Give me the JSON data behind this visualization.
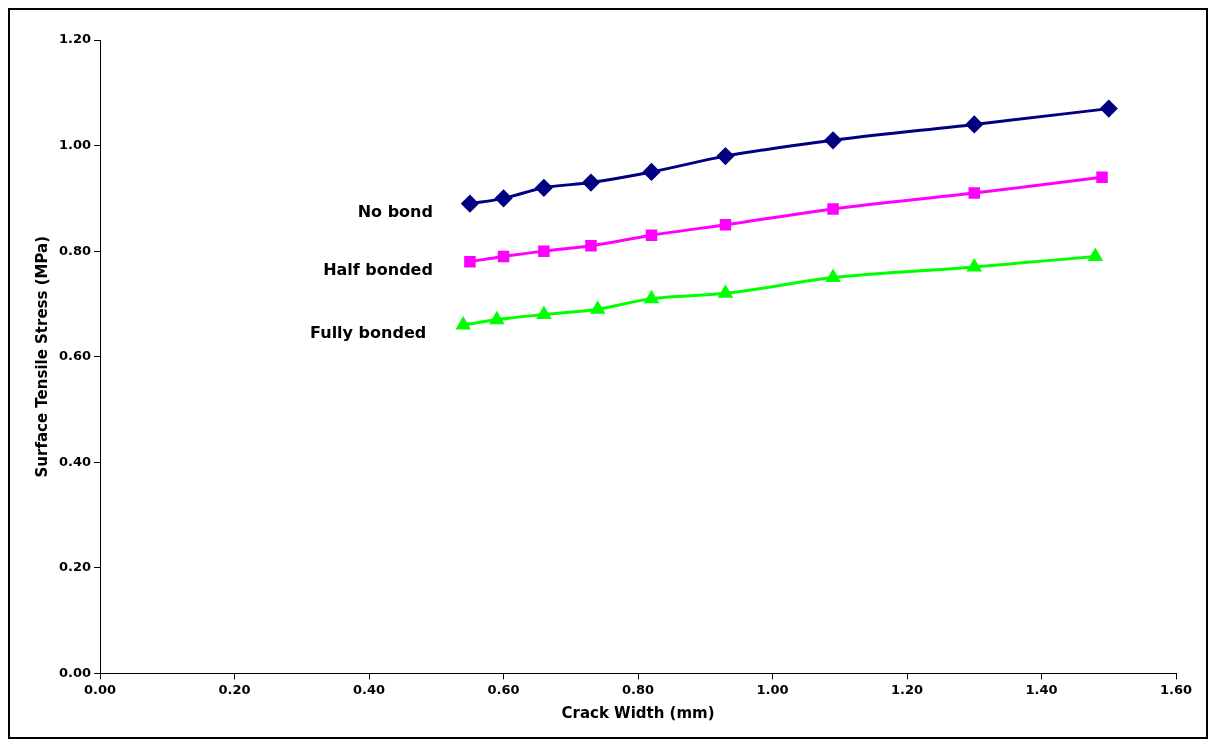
{
  "chart_data": {
    "type": "line",
    "xlabel": "Crack Width (mm)",
    "ylabel": "Surface Tensile Stress (MPa)",
    "xlim": [
      0,
      1.6
    ],
    "xticks": [
      {
        "value": 0,
        "label": "0.00"
      },
      {
        "value": 0.2,
        "label": "0.20"
      },
      {
        "value": 0.4,
        "label": "0.40"
      },
      {
        "value": 0.6,
        "label": "0.60"
      },
      {
        "value": 0.8,
        "label": "0.80"
      },
      {
        "value": 1,
        "label": "1.00"
      },
      {
        "value": 1.2,
        "label": "1.20"
      },
      {
        "value": 1.4,
        "label": "1.40"
      },
      {
        "value": 1.6,
        "label": "1.60"
      }
    ],
    "ylim": [
      0,
      1.2
    ],
    "yticks": [
      {
        "value": 0,
        "label": "0.00"
      },
      {
        "value": 0.2,
        "label": "0.20"
      },
      {
        "value": 0.4,
        "label": "0.40"
      },
      {
        "value": 0.6,
        "label": "0.60"
      },
      {
        "value": 0.8,
        "label": "0.80"
      },
      {
        "value": 1,
        "label": "1.00"
      },
      {
        "value": 1.2,
        "label": "1.20"
      }
    ],
    "grid": false,
    "legend": false,
    "series": [
      {
        "name": "No bond",
        "color": "#000080",
        "marker": "diamond",
        "x": [
          0.55,
          0.6,
          0.66,
          0.73,
          0.82,
          0.93,
          1.09,
          1.3,
          1.5
        ],
        "values": [
          0.89,
          0.9,
          0.92,
          0.93,
          0.95,
          0.98,
          1.01,
          1.04,
          1.07
        ]
      },
      {
        "name": "Half bonded",
        "color": "#ff00ff",
        "marker": "square",
        "x": [
          0.55,
          0.6,
          0.66,
          0.73,
          0.82,
          0.93,
          1.09,
          1.3,
          1.49
        ],
        "values": [
          0.78,
          0.79,
          0.8,
          0.81,
          0.83,
          0.85,
          0.88,
          0.91,
          0.94
        ]
      },
      {
        "name": "Fully bonded",
        "color": "#00ff00",
        "marker": "triangle",
        "x": [
          0.54,
          0.59,
          0.66,
          0.74,
          0.82,
          0.93,
          1.09,
          1.3,
          1.48
        ],
        "values": [
          0.66,
          0.67,
          0.68,
          0.69,
          0.71,
          0.72,
          0.75,
          0.77,
          0.79
        ]
      }
    ]
  }
}
